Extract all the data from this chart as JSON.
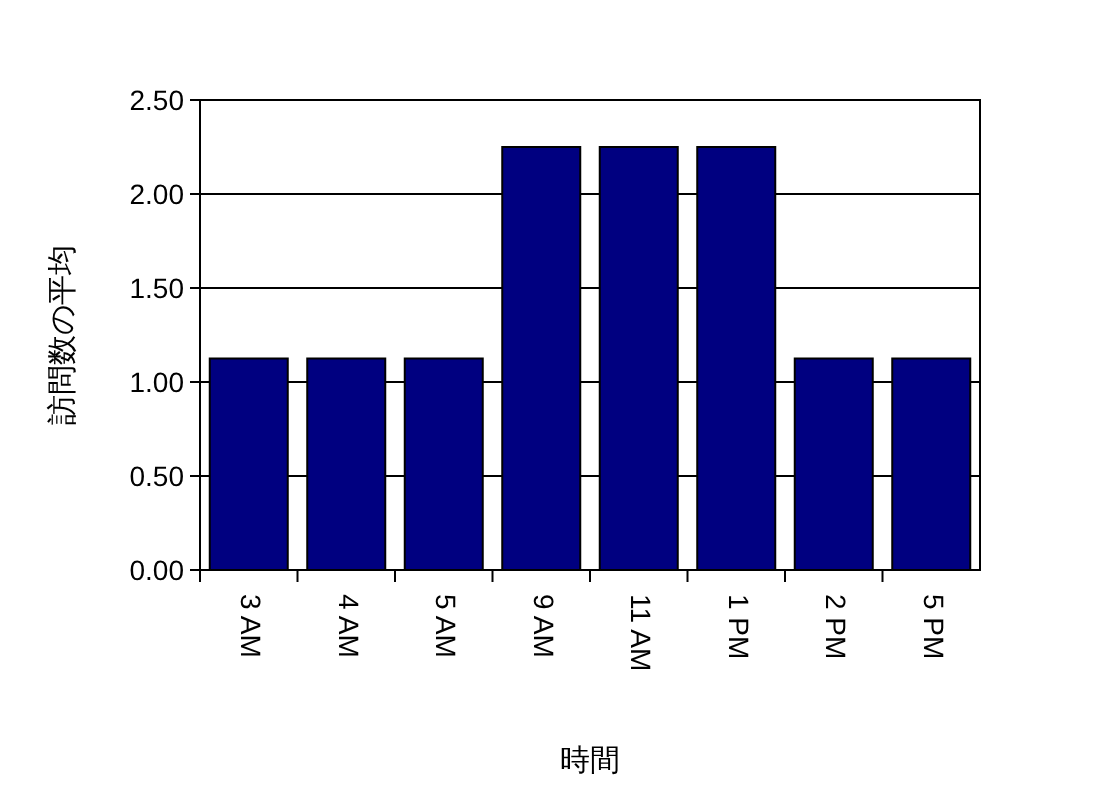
{
  "chart_data": {
    "type": "bar",
    "xlabel": "時間",
    "ylabel": "訪問数の平均",
    "categories": [
      "3 AM",
      "4 AM",
      "5 AM",
      "9 AM",
      "11 AM",
      "1 PM",
      "2 PM",
      "5 PM"
    ],
    "values": [
      1.125,
      1.125,
      1.125,
      2.25,
      2.25,
      2.25,
      1.125,
      1.125
    ],
    "color": "#000080",
    "ylim": [
      0,
      2.5
    ],
    "yticks": [
      {
        "value": 0,
        "label": "0.00"
      },
      {
        "value": 0.5,
        "label": "0.50"
      },
      {
        "value": 1,
        "label": "1.00"
      },
      {
        "value": 1.5,
        "label": "1.50"
      },
      {
        "value": 2,
        "label": "2.00"
      },
      {
        "value": 2.5,
        "label": "2.50"
      }
    ],
    "grid": "y"
  }
}
